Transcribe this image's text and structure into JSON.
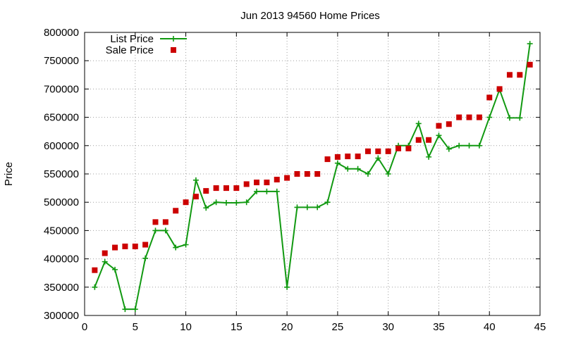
{
  "chart_data": {
    "type": "line",
    "title": "Jun 2013 94560 Home Prices",
    "xlabel": "",
    "ylabel": "Price",
    "xlim": [
      0,
      45
    ],
    "ylim": [
      300000,
      800000
    ],
    "x_ticks": [
      0,
      5,
      10,
      15,
      20,
      25,
      30,
      35,
      40,
      45
    ],
    "y_ticks": [
      300000,
      350000,
      400000,
      450000,
      500000,
      550000,
      600000,
      650000,
      700000,
      750000,
      800000
    ],
    "grid": true,
    "legend_position": "top-left",
    "series": [
      {
        "name": "List Price",
        "style": "line+cross",
        "color": "#119911",
        "x": [
          1,
          2,
          3,
          4,
          5,
          6,
          7,
          8,
          9,
          10,
          11,
          12,
          13,
          14,
          15,
          16,
          17,
          18,
          19,
          20,
          21,
          22,
          23,
          24,
          25,
          26,
          27,
          28,
          29,
          30,
          31,
          32,
          33,
          34,
          35,
          36,
          37,
          38,
          39,
          40,
          41,
          42,
          43,
          44
        ],
        "y": [
          350000,
          395000,
          381000,
          311000,
          311000,
          401000,
          450000,
          450000,
          420000,
          425000,
          539000,
          490000,
          500000,
          499000,
          499000,
          500000,
          519000,
          519000,
          519000,
          350000,
          491000,
          491000,
          491000,
          500000,
          569000,
          559000,
          559000,
          550000,
          578000,
          550000,
          600000,
          600000,
          639000,
          580000,
          618000,
          594000,
          600000,
          600000,
          600000,
          650000,
          699000,
          649000,
          649000,
          780000
        ]
      },
      {
        "name": "Sale Price",
        "style": "square",
        "color": "#cc0000",
        "x": [
          1,
          2,
          3,
          4,
          5,
          6,
          7,
          8,
          9,
          10,
          11,
          12,
          13,
          14,
          15,
          16,
          17,
          18,
          19,
          20,
          21,
          22,
          23,
          24,
          25,
          26,
          27,
          28,
          29,
          30,
          31,
          32,
          33,
          34,
          35,
          36,
          37,
          38,
          39,
          40,
          41,
          42,
          43,
          44
        ],
        "y": [
          380000,
          410000,
          420000,
          422000,
          422000,
          425000,
          465000,
          465000,
          485000,
          500000,
          510000,
          520000,
          525000,
          525000,
          525000,
          532000,
          535000,
          535000,
          540000,
          543000,
          550000,
          550000,
          550000,
          576000,
          580000,
          581000,
          581000,
          590000,
          590000,
          590000,
          595000,
          595000,
          610000,
          610000,
          635000,
          638000,
          650000,
          650000,
          650000,
          685000,
          700000,
          725000,
          725000,
          743000
        ]
      }
    ]
  }
}
